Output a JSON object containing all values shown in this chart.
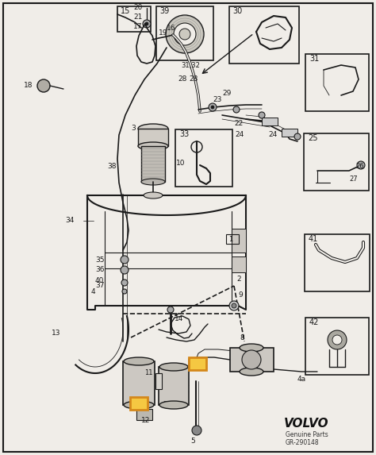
{
  "bg_color": "#f0ede8",
  "line_color": "#1a1a1a",
  "orange_color": "#d4881a",
  "orange_fill": "#f5c842",
  "volvo_text": "VOLVO",
  "genuine_parts": "Genuine Parts",
  "part_number": "GR-290148",
  "figsize": [
    4.74,
    5.73
  ],
  "dpi": 100
}
